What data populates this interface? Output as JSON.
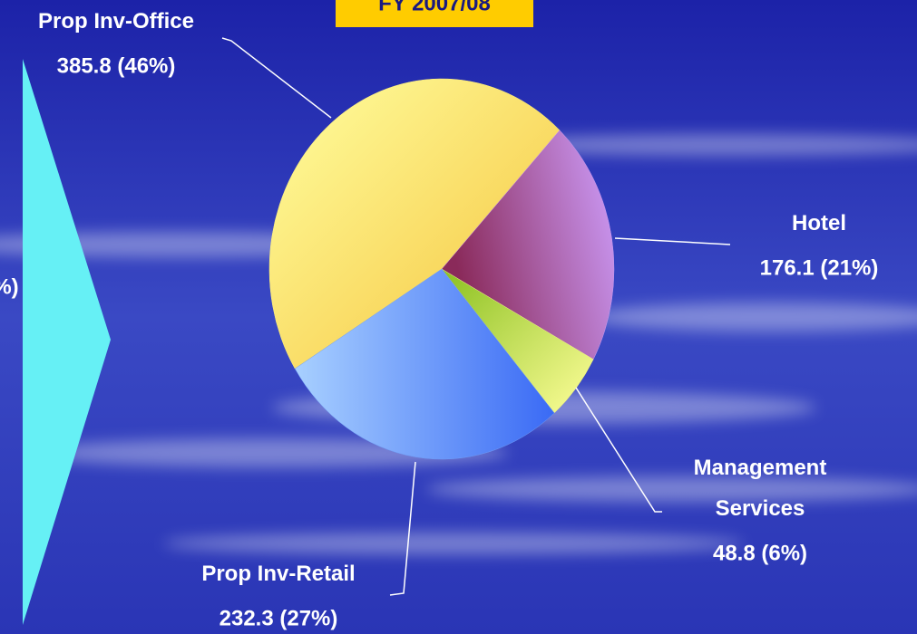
{
  "chart_data": {
    "type": "pie",
    "title": "FY 2007/08",
    "categories": [
      "Prop Inv-Office",
      "Hotel",
      "Management\nServices",
      "Prop Inv-Retail"
    ],
    "values": [
      385.8,
      176.1,
      48.8,
      232.3
    ],
    "value_labels": [
      "385.8 (46%)",
      "176.1 (21%)",
      "48.8 (6%)",
      "232.3 (27%)"
    ],
    "colors": [
      "#fff27a",
      "#c79af0",
      "#eef27a",
      "#6f9cf5"
    ],
    "annotations": [
      "%)"
    ]
  }
}
